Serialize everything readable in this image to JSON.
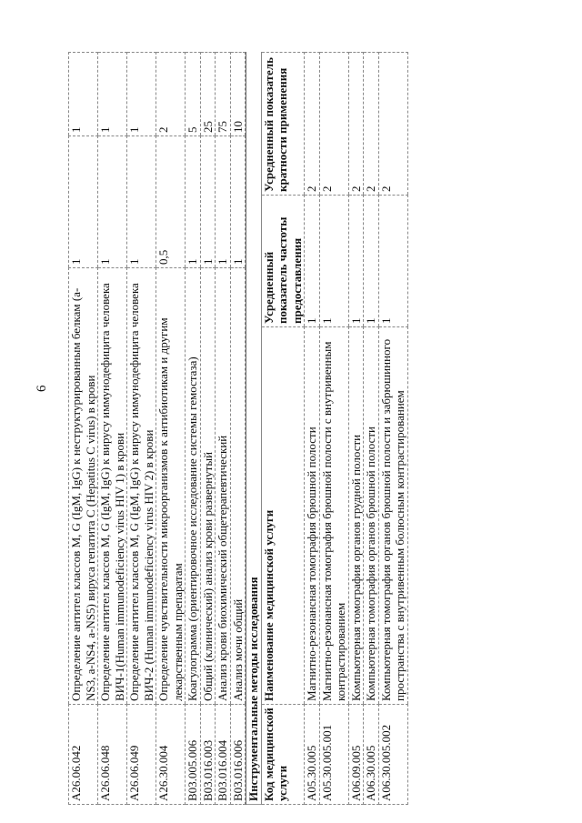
{
  "page_number": "6",
  "lab_rows": [
    {
      "code": "A26.06.042",
      "name": "Определение антител классов M, G (IgM, IgG) к неструктурированным белкам (a-NS3, a-NS4, a-NS5) вируса гепатита C (Hepatitus C virus) в крови",
      "freq": "1",
      "mult": "1"
    },
    {
      "code": "A26.06.048",
      "name": "Определение антител классов M, G (IgM, IgG) к вирусу иммунодефицита человека ВИЧ-1(Human immunodeficiency virus HIV 1) в крови",
      "freq": "1",
      "mult": "1"
    },
    {
      "code": "A26.06.049",
      "name": "Определение антител классов M, G (IgM, IgG) к вирусу иммунодефицита человека ВИЧ-2 (Human immunodeficiency virus HIV 2) в крови",
      "freq": "1",
      "mult": "1"
    },
    {
      "code": "A26.30.004",
      "name": "Определение чувствительности микроорганизмов к антибиотикам и другим лекарственным препаратам",
      "freq": "0,5",
      "mult": "2"
    },
    {
      "code": "B03.005.006",
      "name": "Коагулограмма (ориентировочное исследование системы гемостаза)",
      "freq": "1",
      "mult": "5"
    },
    {
      "code": "B03.016.003",
      "name": "Общий (клинический) анализ крови развернутый",
      "freq": "1",
      "mult": "25"
    },
    {
      "code": "B03.016.004",
      "name": "Анализ крови биохимический общетерапевтический",
      "freq": "1",
      "mult": "75"
    },
    {
      "code": "B03.016.006",
      "name": "Анализ мочи общий",
      "freq": "1",
      "mult": "10"
    }
  ],
  "instrumental": {
    "section_title": "Инструментальные методы исследования",
    "headers": {
      "code": "Код медицинской услуги",
      "name": "Наименование медицинской услуги",
      "freq": "Усредненный показатель частоты предоставления",
      "mult": "Усредненный показатель кратности применения"
    },
    "rows": [
      {
        "code": "A05.30.005",
        "name": "Магнитно-резонансная томография брюшной полости",
        "freq": "1",
        "mult": "2"
      },
      {
        "code": "A05.30.005.001",
        "name": "Магнитно-резонансная томография брюшной полости с внутривенным контрастированием",
        "freq": "1",
        "mult": "2"
      },
      {
        "code": "A06.09.005",
        "name": "Компьютерная томография органов грудной полости",
        "freq": "1",
        "mult": "2"
      },
      {
        "code": "A06.30.005",
        "name": "Компьютерная томография органов брюшной полости",
        "freq": "1",
        "mult": "2"
      },
      {
        "code": "A06.30.005.002",
        "name": "Компьютерная томография органов брюшной полости и забрюшинного пространства с внутривенным болюсным контрастированием",
        "freq": "1",
        "mult": "2"
      }
    ]
  }
}
